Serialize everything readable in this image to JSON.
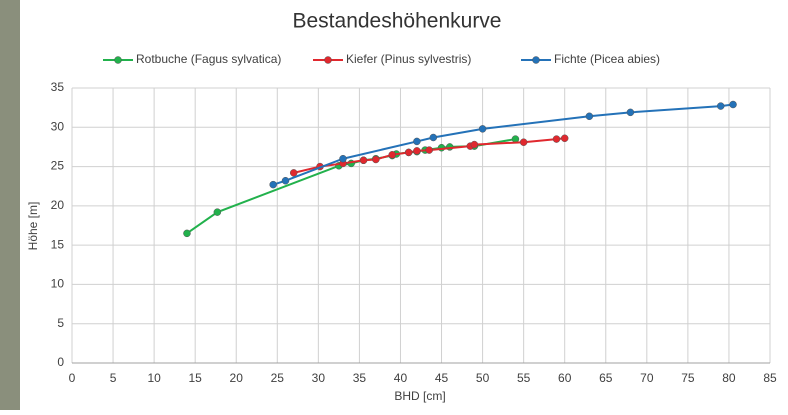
{
  "chart_data": {
    "type": "line",
    "title": "Bestandeshöhenkurve",
    "x_label": "BHD [cm]",
    "y_label": "Höhe [m]",
    "xlim": [
      0,
      85
    ],
    "xticks": [
      0,
      5,
      10,
      15,
      20,
      25,
      30,
      35,
      40,
      45,
      50,
      55,
      60,
      65,
      70,
      75,
      80,
      85
    ],
    "ylim": [
      0,
      35
    ],
    "yticks": [
      0,
      5,
      10,
      15,
      20,
      25,
      30,
      35
    ],
    "grid": true,
    "legend": "top",
    "series": [
      {
        "name": "Rotbuche (Fagus sylvatica)",
        "color": "#22b14c",
        "x": [
          14,
          17.7,
          32.5,
          34,
          35.5,
          37,
          39,
          39.5,
          41,
          42,
          43,
          45,
          46,
          49,
          54
        ],
        "values": [
          16.5,
          19.2,
          25.1,
          25.4,
          25.8,
          26,
          26.4,
          26.6,
          26.8,
          26.9,
          27.1,
          27.4,
          27.5,
          27.6,
          28.5
        ]
      },
      {
        "name": "Kiefer (Pinus sylvestris)",
        "color": "#e0282e",
        "x": [
          27,
          30.2,
          33,
          35.5,
          37,
          39,
          41,
          42,
          43.5,
          48.5,
          49,
          55,
          59,
          60
        ],
        "values": [
          24.2,
          25,
          25.4,
          25.8,
          25.9,
          26.5,
          26.8,
          27,
          27.1,
          27.6,
          27.8,
          28.1,
          28.5,
          28.6
        ]
      },
      {
        "name": "Fichte (Picea abies)",
        "color": "#2472b8",
        "x": [
          24.5,
          26,
          33,
          42,
          44,
          50,
          63,
          68,
          79,
          80.5
        ],
        "values": [
          22.7,
          23.2,
          26,
          28.2,
          28.7,
          29.8,
          31.4,
          31.9,
          32.7,
          32.9
        ]
      }
    ]
  }
}
